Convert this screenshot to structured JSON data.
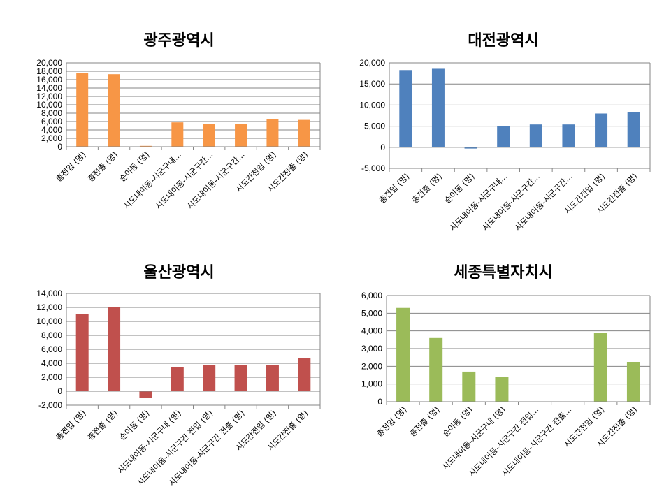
{
  "chart_data": [
    {
      "type": "bar",
      "title": "광주광역시",
      "color": "#F79646",
      "categories": [
        "총전입 (명)",
        "총전출 (명)",
        "순이동 (명)",
        "시도내이동-시군구내...",
        "시도내이동-시군구간...",
        "시도내이동-시군구간...",
        "시도간전입 (명)",
        "시도간전출 (명)"
      ],
      "values": [
        17500,
        17300,
        200,
        5800,
        5500,
        5500,
        6600,
        6400
      ],
      "ylim": [
        0,
        20000
      ],
      "yticks": [
        0,
        2000,
        4000,
        6000,
        8000,
        10000,
        12000,
        14000,
        16000,
        18000,
        20000
      ],
      "ytick_labels": [
        "0",
        "2,000",
        "4,000",
        "6,000",
        "8,000",
        "10,000",
        "12,000",
        "14,000",
        "16,000",
        "18,000",
        "20,000"
      ],
      "grid": true
    },
    {
      "type": "bar",
      "title": "대전광역시",
      "color": "#4F81BD",
      "categories": [
        "총전입 (명)",
        "총전출 (명)",
        "순이동 (명)",
        "시도내이동-시군구내...",
        "시도내이동-시군구간...",
        "시도내이동-시군구간...",
        "시도간전입 (명)",
        "시도간전출 (명)"
      ],
      "values": [
        18300,
        18600,
        -300,
        5000,
        5400,
        5400,
        8000,
        8300
      ],
      "ylim": [
        -5000,
        20000
      ],
      "yticks": [
        -5000,
        0,
        5000,
        10000,
        15000,
        20000
      ],
      "ytick_labels": [
        "-5,000",
        "0",
        "5,000",
        "10,000",
        "15,000",
        "20,000"
      ],
      "grid": true
    },
    {
      "type": "bar",
      "title": "울산광역시",
      "color": "#C0504D",
      "categories": [
        "총전입 (명)",
        "총전출 (명)",
        "순이동 (명)",
        "시도내이동-시군구내 (명)",
        "시도내이동-시군구간 전입 (명)",
        "시도내이동-시군구간 전출 (명)",
        "시도간전입 (명)",
        "시도간전출 (명)"
      ],
      "values": [
        11000,
        12100,
        -1000,
        3500,
        3800,
        3800,
        3700,
        4800
      ],
      "ylim": [
        -2000,
        14000
      ],
      "yticks": [
        -2000,
        0,
        2000,
        4000,
        6000,
        8000,
        10000,
        12000,
        14000
      ],
      "ytick_labels": [
        "-2,000",
        "0",
        "2,000",
        "4,000",
        "6,000",
        "8,000",
        "10,000",
        "12,000",
        "14,000"
      ],
      "grid": true
    },
    {
      "type": "bar",
      "title": "세종특별자치시",
      "color": "#9BBB59",
      "categories": [
        "총전입 (명)",
        "총전출 (명)",
        "순이동 (명)",
        "시도내이동-시군구내 (명)",
        "시도내이동-시군구간 전입...",
        "시도내이동-시군구간 전출...",
        "시도간전입 (명)",
        "시도간전출 (명)"
      ],
      "values": [
        5300,
        3600,
        1700,
        1400,
        0,
        0,
        3900,
        2250
      ],
      "ylim": [
        0,
        6000
      ],
      "yticks": [
        0,
        1000,
        2000,
        3000,
        4000,
        5000,
        6000
      ],
      "ytick_labels": [
        "0",
        "1,000",
        "2,000",
        "3,000",
        "4,000",
        "5,000",
        "6,000"
      ],
      "grid": true
    }
  ]
}
